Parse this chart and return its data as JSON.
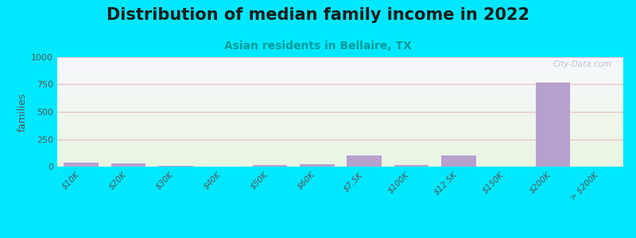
{
  "title": "Distribution of median family income in 2022",
  "subtitle": "Asian residents in Bellaire, TX",
  "categories": [
    "$10K",
    "$20K",
    "$30K",
    "$40K",
    "$50K",
    "$60K",
    "$7.5K",
    "$100K",
    "$12.5K",
    "$150K",
    "$200K",
    "> $200K"
  ],
  "values": [
    40,
    35,
    12,
    5,
    20,
    30,
    110,
    20,
    110,
    0,
    775,
    0
  ],
  "bar_color": "#b8a0cc",
  "grad_top": "#f7f7fc",
  "grad_bottom": "#e8f5e0",
  "background": "#00e8ff",
  "grid_color": "#e8c0c0",
  "ylabel": "families",
  "ylim": [
    0,
    1000
  ],
  "yticks": [
    0,
    250,
    500,
    750,
    1000
  ],
  "title_fontsize": 15,
  "subtitle_fontsize": 10,
  "watermark": "City-Data.com"
}
